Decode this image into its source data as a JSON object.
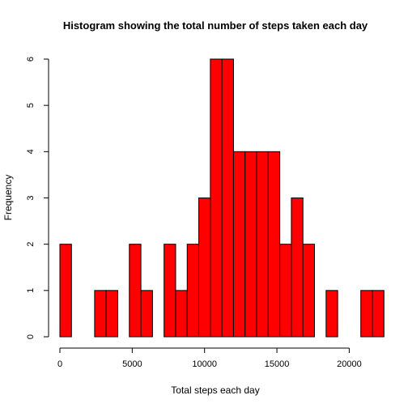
{
  "chart_data": {
    "type": "bar",
    "title": "Histogram showing the total number of steps taken each day",
    "xlabel": "Total steps each day",
    "ylabel": "Frequency",
    "bin_width": 800,
    "bins": [
      {
        "start": 0,
        "end": 800,
        "count": 2
      },
      {
        "start": 800,
        "end": 1600,
        "count": 0
      },
      {
        "start": 1600,
        "end": 2400,
        "count": 0
      },
      {
        "start": 2400,
        "end": 3200,
        "count": 1
      },
      {
        "start": 3200,
        "end": 4000,
        "count": 1
      },
      {
        "start": 4000,
        "end": 4800,
        "count": 0
      },
      {
        "start": 4800,
        "end": 5600,
        "count": 2
      },
      {
        "start": 5600,
        "end": 6400,
        "count": 1
      },
      {
        "start": 6400,
        "end": 7200,
        "count": 0
      },
      {
        "start": 7200,
        "end": 8000,
        "count": 2
      },
      {
        "start": 8000,
        "end": 8800,
        "count": 1
      },
      {
        "start": 8800,
        "end": 9600,
        "count": 2
      },
      {
        "start": 9600,
        "end": 10400,
        "count": 3
      },
      {
        "start": 10400,
        "end": 11200,
        "count": 6
      },
      {
        "start": 11200,
        "end": 12000,
        "count": 6
      },
      {
        "start": 12000,
        "end": 12800,
        "count": 4
      },
      {
        "start": 12800,
        "end": 13600,
        "count": 4
      },
      {
        "start": 13600,
        "end": 14400,
        "count": 4
      },
      {
        "start": 14400,
        "end": 15200,
        "count": 4
      },
      {
        "start": 15200,
        "end": 16000,
        "count": 2
      },
      {
        "start": 16000,
        "end": 16800,
        "count": 3
      },
      {
        "start": 16800,
        "end": 17600,
        "count": 2
      },
      {
        "start": 17600,
        "end": 18400,
        "count": 0
      },
      {
        "start": 18400,
        "end": 19200,
        "count": 1
      },
      {
        "start": 19200,
        "end": 20000,
        "count": 0
      },
      {
        "start": 20000,
        "end": 20800,
        "count": 0
      },
      {
        "start": 20800,
        "end": 21600,
        "count": 1
      },
      {
        "start": 21600,
        "end": 22400,
        "count": 1
      }
    ],
    "x_ticks": [
      0,
      5000,
      10000,
      15000,
      20000
    ],
    "y_ticks": [
      0,
      1,
      2,
      3,
      4,
      5,
      6
    ],
    "xlim": [
      0,
      21600
    ],
    "ylim": [
      0,
      6
    ],
    "bar_color": "#ff0000",
    "border_color": "#000000",
    "grid": false,
    "legend": "none"
  }
}
